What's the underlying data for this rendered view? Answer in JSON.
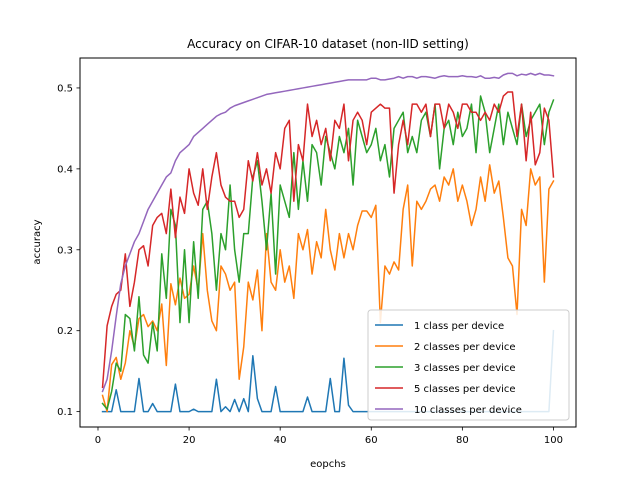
{
  "chart_data": {
    "type": "line",
    "title": "Accuracy on CIFAR-10 dataset (non-IID setting)",
    "xlabel": "eopchs",
    "ylabel": "accuracy",
    "xlim": [
      -3.95,
      104.95
    ],
    "ylim": [
      0.081,
      0.537
    ],
    "xticks": [
      0,
      20,
      40,
      60,
      80,
      100
    ],
    "yticks": [
      0.1,
      0.2,
      0.3,
      0.4,
      0.5
    ],
    "x_tick_labels": [
      "0",
      "20",
      "40",
      "60",
      "80",
      "100"
    ],
    "y_tick_labels": [
      "0.1",
      "0.2",
      "0.3",
      "0.4",
      "0.5"
    ],
    "legend_position": "lower right",
    "grid": false,
    "x": [
      1,
      2,
      3,
      4,
      5,
      6,
      7,
      8,
      9,
      10,
      11,
      12,
      13,
      14,
      15,
      16,
      17,
      18,
      19,
      20,
      21,
      22,
      23,
      24,
      25,
      26,
      27,
      28,
      29,
      30,
      31,
      32,
      33,
      34,
      35,
      36,
      37,
      38,
      39,
      40,
      41,
      42,
      43,
      44,
      45,
      46,
      47,
      48,
      49,
      50,
      51,
      52,
      53,
      54,
      55,
      56,
      57,
      58,
      59,
      60,
      61,
      62,
      63,
      64,
      65,
      66,
      67,
      68,
      69,
      70,
      71,
      72,
      73,
      74,
      75,
      76,
      77,
      78,
      79,
      80,
      81,
      82,
      83,
      84,
      85,
      86,
      87,
      88,
      89,
      90,
      91,
      92,
      93,
      94,
      95,
      96,
      97,
      98,
      99,
      100
    ],
    "series": [
      {
        "name": "1 class per device",
        "color": "#1f77b4",
        "values": [
          0.1,
          0.1,
          0.1,
          0.127,
          0.1,
          0.1,
          0.1,
          0.1,
          0.141,
          0.1,
          0.1,
          0.11,
          0.1,
          0.1,
          0.1,
          0.1,
          0.134,
          0.1,
          0.1,
          0.1,
          0.103,
          0.1,
          0.1,
          0.1,
          0.1,
          0.14,
          0.1,
          0.106,
          0.1,
          0.115,
          0.1,
          0.116,
          0.1,
          0.169,
          0.116,
          0.1,
          0.1,
          0.1,
          0.131,
          0.1,
          0.1,
          0.1,
          0.1,
          0.1,
          0.1,
          0.118,
          0.1,
          0.1,
          0.1,
          0.1,
          0.141,
          0.1,
          0.1,
          0.166,
          0.108,
          0.1,
          0.1,
          0.1,
          0.1,
          0.1,
          0.1,
          0.1,
          0.1,
          0.1,
          0.1,
          0.1,
          0.1,
          0.1,
          0.1,
          0.1,
          0.1,
          0.1,
          0.1,
          0.1,
          0.1,
          0.1,
          0.1,
          0.1,
          0.1,
          0.1,
          0.1,
          0.1,
          0.1,
          0.1,
          0.1,
          0.1,
          0.1,
          0.1,
          0.1,
          0.1,
          0.1,
          0.1,
          0.1,
          0.1,
          0.1,
          0.1,
          0.1,
          0.1,
          0.1,
          0.2
        ]
      },
      {
        "name": "2 classes per device",
        "color": "#ff7f0e",
        "values": [
          0.12,
          0.1,
          0.158,
          0.167,
          0.14,
          0.16,
          0.2,
          0.18,
          0.215,
          0.22,
          0.205,
          0.212,
          0.2,
          0.233,
          0.157,
          0.258,
          0.232,
          0.265,
          0.24,
          0.245,
          0.28,
          0.25,
          0.32,
          0.25,
          0.212,
          0.2,
          0.28,
          0.27,
          0.25,
          0.26,
          0.14,
          0.18,
          0.26,
          0.238,
          0.275,
          0.2,
          0.32,
          0.26,
          0.25,
          0.3,
          0.26,
          0.28,
          0.24,
          0.32,
          0.3,
          0.325,
          0.27,
          0.31,
          0.29,
          0.35,
          0.3,
          0.275,
          0.32,
          0.29,
          0.32,
          0.3,
          0.33,
          0.348,
          0.348,
          0.34,
          0.355,
          0.21,
          0.28,
          0.27,
          0.285,
          0.275,
          0.35,
          0.38,
          0.28,
          0.36,
          0.35,
          0.36,
          0.375,
          0.38,
          0.36,
          0.39,
          0.38,
          0.4,
          0.36,
          0.38,
          0.36,
          0.33,
          0.35,
          0.39,
          0.36,
          0.405,
          0.37,
          0.385,
          0.34,
          0.29,
          0.28,
          0.22,
          0.35,
          0.33,
          0.4,
          0.38,
          0.39,
          0.26,
          0.375,
          0.385
        ]
      },
      {
        "name": "3 classes per device",
        "color": "#2ca02c",
        "values": [
          0.11,
          0.103,
          0.125,
          0.16,
          0.15,
          0.22,
          0.215,
          0.175,
          0.242,
          0.17,
          0.16,
          0.21,
          0.175,
          0.295,
          0.24,
          0.35,
          0.33,
          0.21,
          0.3,
          0.21,
          0.31,
          0.24,
          0.35,
          0.36,
          0.32,
          0.25,
          0.32,
          0.3,
          0.38,
          0.3,
          0.26,
          0.32,
          0.32,
          0.39,
          0.41,
          0.36,
          0.3,
          0.37,
          0.27,
          0.38,
          0.36,
          0.34,
          0.42,
          0.35,
          0.41,
          0.36,
          0.43,
          0.42,
          0.38,
          0.44,
          0.42,
          0.4,
          0.44,
          0.42,
          0.45,
          0.38,
          0.46,
          0.44,
          0.42,
          0.43,
          0.45,
          0.41,
          0.43,
          0.39,
          0.45,
          0.46,
          0.47,
          0.42,
          0.44,
          0.42,
          0.46,
          0.47,
          0.44,
          0.48,
          0.4,
          0.45,
          0.46,
          0.43,
          0.47,
          0.44,
          0.45,
          0.48,
          0.42,
          0.49,
          0.47,
          0.42,
          0.45,
          0.48,
          0.43,
          0.47,
          0.45,
          0.43,
          0.48,
          0.44,
          0.46,
          0.47,
          0.48,
          0.43,
          0.47,
          0.485
        ]
      },
      {
        "name": "5 classes per device",
        "color": "#d62728",
        "values": [
          0.13,
          0.206,
          0.23,
          0.245,
          0.25,
          0.295,
          0.23,
          0.26,
          0.3,
          0.305,
          0.28,
          0.33,
          0.34,
          0.345,
          0.32,
          0.375,
          0.315,
          0.365,
          0.345,
          0.4,
          0.37,
          0.355,
          0.4,
          0.35,
          0.39,
          0.42,
          0.38,
          0.365,
          0.36,
          0.36,
          0.34,
          0.35,
          0.41,
          0.385,
          0.42,
          0.38,
          0.4,
          0.37,
          0.42,
          0.4,
          0.45,
          0.46,
          0.36,
          0.43,
          0.41,
          0.48,
          0.44,
          0.46,
          0.43,
          0.45,
          0.41,
          0.46,
          0.45,
          0.48,
          0.41,
          0.46,
          0.47,
          0.46,
          0.43,
          0.47,
          0.475,
          0.48,
          0.475,
          0.475,
          0.37,
          0.43,
          0.46,
          0.43,
          0.48,
          0.48,
          0.47,
          0.48,
          0.44,
          0.48,
          0.48,
          0.45,
          0.48,
          0.47,
          0.45,
          0.48,
          0.48,
          0.47,
          0.47,
          0.46,
          0.47,
          0.46,
          0.48,
          0.47,
          0.49,
          0.495,
          0.495,
          0.44,
          0.48,
          0.41,
          0.47,
          0.405,
          0.42,
          0.475,
          0.46,
          0.39
        ]
      },
      {
        "name": "10 classes per device",
        "color": "#9467bd",
        "values": [
          0.125,
          0.14,
          0.175,
          0.218,
          0.258,
          0.28,
          0.295,
          0.31,
          0.32,
          0.335,
          0.35,
          0.36,
          0.37,
          0.38,
          0.39,
          0.395,
          0.41,
          0.42,
          0.425,
          0.43,
          0.44,
          0.445,
          0.45,
          0.455,
          0.46,
          0.465,
          0.468,
          0.47,
          0.475,
          0.478,
          0.48,
          0.482,
          0.484,
          0.486,
          0.488,
          0.49,
          0.492,
          0.493,
          0.494,
          0.495,
          0.496,
          0.497,
          0.498,
          0.499,
          0.5,
          0.501,
          0.502,
          0.503,
          0.504,
          0.505,
          0.506,
          0.507,
          0.508,
          0.509,
          0.51,
          0.51,
          0.51,
          0.51,
          0.51,
          0.512,
          0.512,
          0.51,
          0.51,
          0.511,
          0.512,
          0.514,
          0.512,
          0.514,
          0.514,
          0.512,
          0.514,
          0.514,
          0.513,
          0.512,
          0.514,
          0.515,
          0.514,
          0.514,
          0.514,
          0.515,
          0.514,
          0.514,
          0.513,
          0.515,
          0.512,
          0.512,
          0.513,
          0.512,
          0.516,
          0.518,
          0.518,
          0.515,
          0.517,
          0.516,
          0.518,
          0.516,
          0.518,
          0.516,
          0.516,
          0.515
        ]
      }
    ]
  }
}
